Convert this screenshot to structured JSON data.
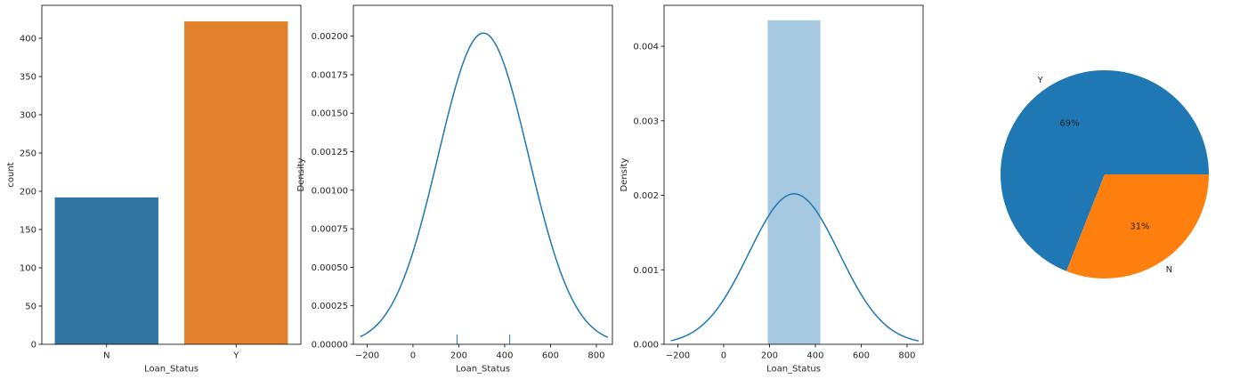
{
  "chart_data": [
    {
      "type": "bar",
      "categories": [
        "N",
        "Y"
      ],
      "values": [
        192,
        422
      ],
      "colors": [
        "#3274a1",
        "#e1812c"
      ],
      "xlabel": "Loan_Status",
      "ylabel": "count",
      "ylim": [
        0,
        443
      ],
      "yticks": [
        0,
        50,
        100,
        150,
        200,
        250,
        300,
        350,
        400
      ],
      "grid": false
    },
    {
      "type": "line",
      "xlabel": "Loan_Status",
      "ylabel": "Density",
      "xlim": [
        -260,
        870
      ],
      "ylim": [
        0,
        0.0022
      ],
      "xticks": [
        -200,
        0,
        200,
        400,
        600,
        800
      ],
      "yticks": [
        0.0,
        0.00025,
        0.0005,
        0.00075,
        0.001,
        0.00125,
        0.0015,
        0.00175,
        0.002
      ],
      "ytick_decimals": 5,
      "kde": {
        "mean": 307,
        "sd": 197,
        "x_from": -230,
        "x_to": 850,
        "peak_density": 0.00202
      },
      "rug": [
        192,
        422
      ],
      "color": "#1f77b4",
      "grid": false
    },
    {
      "type": "bar",
      "subtype": "histogram+kde",
      "xlabel": "Loan_Status",
      "ylabel": "Density",
      "xlim": [
        -260,
        870
      ],
      "ylim": [
        0,
        0.00455
      ],
      "xticks": [
        -200,
        0,
        200,
        400,
        600,
        800
      ],
      "yticks": [
        0.0,
        0.001,
        0.002,
        0.003,
        0.004
      ],
      "ytick_decimals": 3,
      "hist_bins": [
        {
          "x0": 192,
          "x1": 422,
          "density": 0.00435
        }
      ],
      "hist_color": "#a6c8e0",
      "kde": {
        "mean": 307,
        "sd": 197,
        "x_from": -230,
        "x_to": 850,
        "peak_density": 0.00202
      },
      "color": "#1f77b4",
      "grid": false
    },
    {
      "type": "pie",
      "slices": [
        {
          "label": "Y",
          "value": 69,
          "pct_label": "69%",
          "color": "#1f77b4"
        },
        {
          "label": "N",
          "value": 31,
          "pct_label": "31%",
          "color": "#ff7f0e"
        }
      ]
    }
  ]
}
